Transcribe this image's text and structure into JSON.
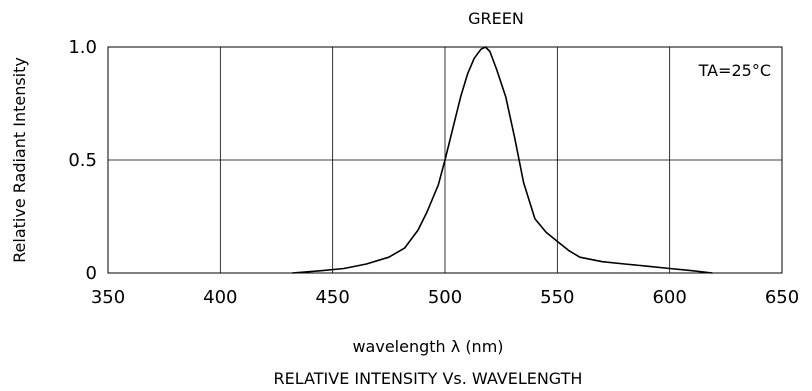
{
  "chart_data": {
    "type": "line",
    "title": "GREEN",
    "xlabel": "wavelength λ (nm)",
    "ylabel": "Relative Radiant Intensity",
    "caption": "RELATIVE INTENSITY Vs. WAVELENGTH",
    "annotation": "TA=25°C",
    "xlim": [
      350,
      650
    ],
    "ylim": [
      0,
      1.0
    ],
    "x_ticks": [
      350,
      400,
      450,
      500,
      550,
      600,
      650
    ],
    "y_ticks": [
      0,
      0.5,
      1.0
    ],
    "x_tick_labels": [
      "350",
      "400",
      "450",
      "500",
      "550",
      "600",
      "650"
    ],
    "y_tick_labels": [
      "0",
      "0.5",
      "1.0"
    ],
    "grid": true,
    "legend": "none",
    "colors": {
      "line": "#000000",
      "grid": "#000000",
      "background": "#ffffff"
    },
    "series": [
      {
        "x": [
          432,
          445,
          455,
          465,
          475,
          482,
          488,
          492,
          497,
          500,
          503,
          507,
          510,
          513,
          516,
          518,
          520,
          523,
          527,
          531,
          535,
          540,
          545,
          550,
          555,
          560,
          570,
          580,
          590,
          600,
          610,
          619
        ],
        "y": [
          0.0,
          0.01,
          0.02,
          0.04,
          0.07,
          0.11,
          0.19,
          0.27,
          0.39,
          0.5,
          0.62,
          0.78,
          0.88,
          0.95,
          0.99,
          1.0,
          0.98,
          0.9,
          0.78,
          0.6,
          0.4,
          0.24,
          0.18,
          0.14,
          0.1,
          0.07,
          0.05,
          0.04,
          0.03,
          0.02,
          0.01,
          0.0
        ]
      }
    ]
  }
}
